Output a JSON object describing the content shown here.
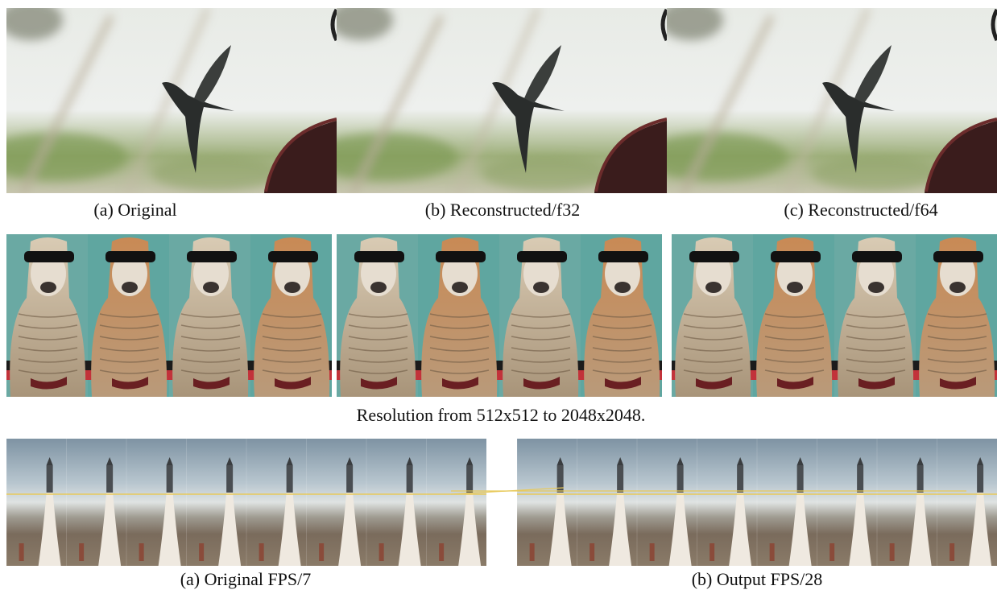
{
  "figure": {
    "row1": {
      "captions": [
        "(a) Original",
        "(b) Reconstructed/f32",
        "(c) Reconstructed/f64"
      ]
    },
    "row2": {
      "caption": "Resolution from 512x512 to 2048x2048."
    },
    "row3": {
      "captions": [
        "(a) Original FPS/7",
        "(b) Output FPS/28"
      ]
    }
  }
}
